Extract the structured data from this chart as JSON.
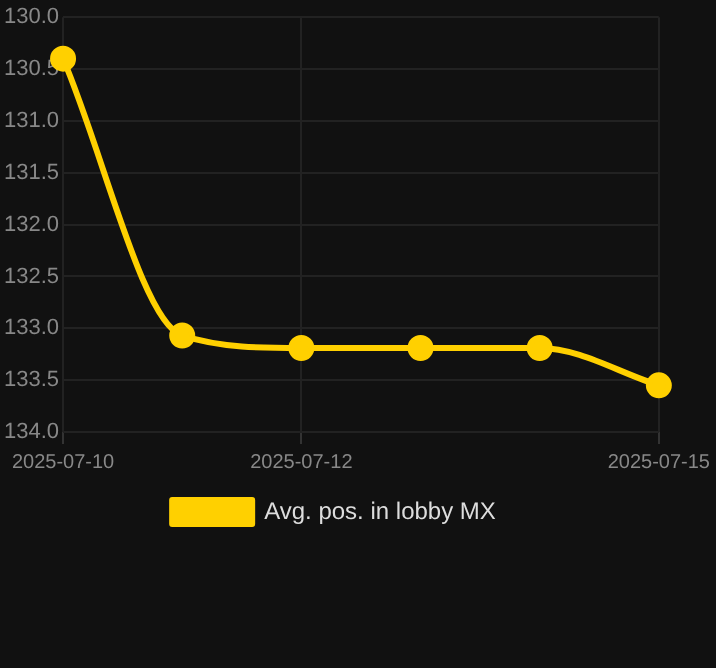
{
  "chart_data": {
    "type": "line",
    "x": [
      "2025-07-10",
      "2025-07-11",
      "2025-07-12",
      "2025-07-13",
      "2025-07-14",
      "2025-07-15"
    ],
    "series": [
      {
        "name": "Avg. pos. in lobby MX",
        "color": "#ffd000",
        "values": [
          130.4,
          133.07,
          133.19,
          133.19,
          133.19,
          133.55
        ]
      }
    ],
    "xlim": [
      "2025-07-10",
      "2025-07-15"
    ],
    "xticks": [
      "2025-07-10",
      "2025-07-12",
      "2025-07-15"
    ],
    "ylim": [
      134,
      130
    ],
    "yticks": [
      {
        "value": 130,
        "label": "130.0"
      },
      130.5,
      {
        "value": 131,
        "label": "131.0"
      },
      131.5,
      {
        "value": 132,
        "label": "132.0"
      },
      132.5,
      {
        "value": 133,
        "label": "133.0"
      },
      133.5,
      {
        "value": 134,
        "label": "134.0"
      }
    ],
    "grid": true,
    "legend": "bottom",
    "marker": "circle",
    "line_style": "solid"
  }
}
